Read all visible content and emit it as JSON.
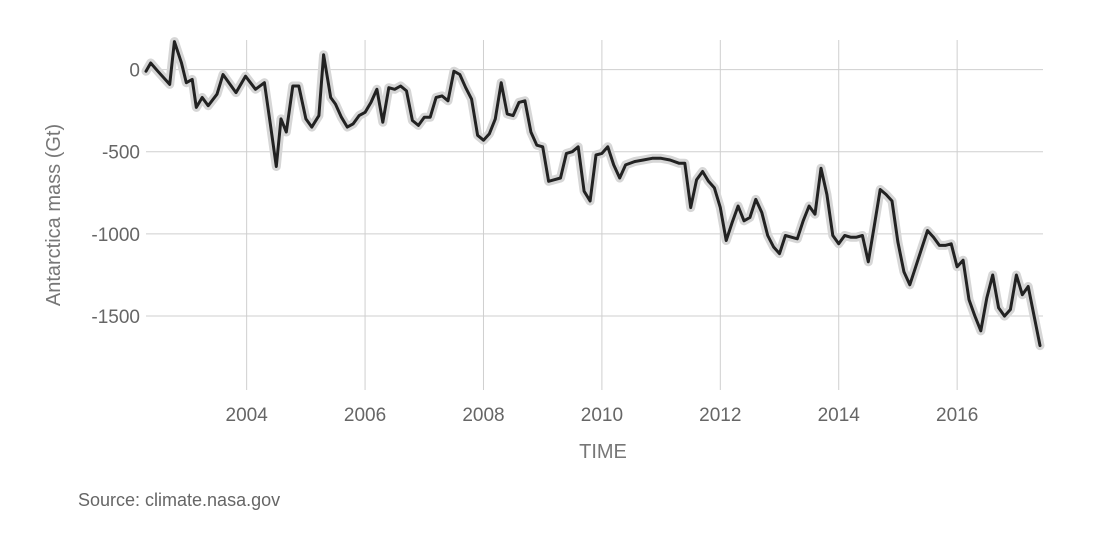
{
  "chart_data": {
    "type": "line",
    "title": "",
    "xlabel": "TIME",
    "ylabel": "Antarctica mass (Gt)",
    "xlim": [
      2002.3,
      2017.45
    ],
    "ylim": [
      -1950,
      180
    ],
    "grid": true,
    "x_ticks": [
      2004,
      2006,
      2008,
      2010,
      2012,
      2014,
      2016
    ],
    "x_tick_labels": [
      "2004",
      "2006",
      "2008",
      "2010",
      "2012",
      "2014",
      "2016"
    ],
    "y_ticks": [
      0,
      -500,
      -1000,
      -1500
    ],
    "y_tick_labels": [
      "0",
      "-500",
      "-1000",
      "-1500"
    ],
    "series": [
      {
        "color": "#222222",
        "uncertainty_color": "#d6d6d6",
        "points": [
          [
            2002.3,
            -10
          ],
          [
            2002.38,
            40
          ],
          [
            2002.5,
            -10
          ],
          [
            2002.7,
            -90
          ],
          [
            2002.78,
            170
          ],
          [
            2002.9,
            40
          ],
          [
            2002.98,
            -80
          ],
          [
            2003.08,
            -60
          ],
          [
            2003.15,
            -230
          ],
          [
            2003.25,
            -170
          ],
          [
            2003.35,
            -220
          ],
          [
            2003.5,
            -150
          ],
          [
            2003.6,
            -30
          ],
          [
            2003.82,
            -140
          ],
          [
            2003.98,
            -40
          ],
          [
            2004.15,
            -120
          ],
          [
            2004.3,
            -80
          ],
          [
            2004.4,
            -330
          ],
          [
            2004.5,
            -590
          ],
          [
            2004.58,
            -300
          ],
          [
            2004.67,
            -380
          ],
          [
            2004.78,
            -100
          ],
          [
            2004.88,
            -100
          ],
          [
            2005.0,
            -300
          ],
          [
            2005.1,
            -350
          ],
          [
            2005.22,
            -280
          ],
          [
            2005.3,
            90
          ],
          [
            2005.42,
            -170
          ],
          [
            2005.5,
            -210
          ],
          [
            2005.6,
            -290
          ],
          [
            2005.7,
            -350
          ],
          [
            2005.8,
            -330
          ],
          [
            2005.9,
            -280
          ],
          [
            2006.0,
            -260
          ],
          [
            2006.1,
            -200
          ],
          [
            2006.2,
            -120
          ],
          [
            2006.3,
            -320
          ],
          [
            2006.4,
            -110
          ],
          [
            2006.5,
            -120
          ],
          [
            2006.6,
            -100
          ],
          [
            2006.7,
            -130
          ],
          [
            2006.8,
            -310
          ],
          [
            2006.9,
            -340
          ],
          [
            2007.0,
            -290
          ],
          [
            2007.1,
            -290
          ],
          [
            2007.2,
            -170
          ],
          [
            2007.3,
            -160
          ],
          [
            2007.4,
            -190
          ],
          [
            2007.5,
            -10
          ],
          [
            2007.6,
            -30
          ],
          [
            2007.7,
            -110
          ],
          [
            2007.8,
            -180
          ],
          [
            2007.9,
            -400
          ],
          [
            2008.0,
            -430
          ],
          [
            2008.1,
            -390
          ],
          [
            2008.2,
            -300
          ],
          [
            2008.3,
            -80
          ],
          [
            2008.4,
            -270
          ],
          [
            2008.5,
            -280
          ],
          [
            2008.6,
            -200
          ],
          [
            2008.7,
            -190
          ],
          [
            2008.8,
            -380
          ],
          [
            2008.9,
            -460
          ],
          [
            2009.0,
            -470
          ],
          [
            2009.1,
            -680
          ],
          [
            2009.2,
            -670
          ],
          [
            2009.3,
            -660
          ],
          [
            2009.4,
            -510
          ],
          [
            2009.5,
            -500
          ],
          [
            2009.6,
            -470
          ],
          [
            2009.7,
            -740
          ],
          [
            2009.8,
            -800
          ],
          [
            2009.9,
            -520
          ],
          [
            2010.0,
            -510
          ],
          [
            2010.1,
            -470
          ],
          [
            2010.2,
            -580
          ],
          [
            2010.3,
            -660
          ],
          [
            2010.4,
            -580
          ],
          [
            2010.55,
            -560
          ],
          [
            2010.7,
            -550
          ],
          [
            2010.85,
            -540
          ],
          [
            2011.0,
            -540
          ],
          [
            2011.15,
            -550
          ],
          [
            2011.3,
            -570
          ],
          [
            2011.4,
            -570
          ],
          [
            2011.5,
            -840
          ],
          [
            2011.6,
            -670
          ],
          [
            2011.7,
            -620
          ],
          [
            2011.8,
            -680
          ],
          [
            2011.9,
            -720
          ],
          [
            2012.0,
            -840
          ],
          [
            2012.1,
            -1040
          ],
          [
            2012.2,
            -930
          ],
          [
            2012.3,
            -830
          ],
          [
            2012.4,
            -920
          ],
          [
            2012.5,
            -900
          ],
          [
            2012.6,
            -790
          ],
          [
            2012.7,
            -870
          ],
          [
            2012.8,
            -1010
          ],
          [
            2012.9,
            -1080
          ],
          [
            2013.0,
            -1120
          ],
          [
            2013.1,
            -1010
          ],
          [
            2013.2,
            -1020
          ],
          [
            2013.3,
            -1030
          ],
          [
            2013.4,
            -920
          ],
          [
            2013.5,
            -830
          ],
          [
            2013.6,
            -880
          ],
          [
            2013.7,
            -600
          ],
          [
            2013.8,
            -760
          ],
          [
            2013.9,
            -1010
          ],
          [
            2014.0,
            -1060
          ],
          [
            2014.1,
            -1010
          ],
          [
            2014.2,
            -1020
          ],
          [
            2014.3,
            -1020
          ],
          [
            2014.4,
            -1010
          ],
          [
            2014.5,
            -1170
          ],
          [
            2014.6,
            -950
          ],
          [
            2014.7,
            -730
          ],
          [
            2014.8,
            -760
          ],
          [
            2014.9,
            -800
          ],
          [
            2015.0,
            -1050
          ],
          [
            2015.1,
            -1230
          ],
          [
            2015.2,
            -1310
          ],
          [
            2015.3,
            -1200
          ],
          [
            2015.4,
            -1090
          ],
          [
            2015.5,
            -980
          ],
          [
            2015.6,
            -1020
          ],
          [
            2015.7,
            -1070
          ],
          [
            2015.8,
            -1070
          ],
          [
            2015.9,
            -1060
          ],
          [
            2016.0,
            -1200
          ],
          [
            2016.1,
            -1160
          ],
          [
            2016.2,
            -1400
          ],
          [
            2016.3,
            -1500
          ],
          [
            2016.4,
            -1590
          ],
          [
            2016.5,
            -1390
          ],
          [
            2016.6,
            -1250
          ],
          [
            2016.7,
            -1450
          ],
          [
            2016.8,
            -1500
          ],
          [
            2016.9,
            -1460
          ],
          [
            2017.0,
            -1250
          ],
          [
            2017.1,
            -1370
          ],
          [
            2017.2,
            -1320
          ],
          [
            2017.3,
            -1500
          ],
          [
            2017.4,
            -1680
          ]
        ]
      }
    ]
  },
  "source_note": "Source: climate.nasa.gov"
}
